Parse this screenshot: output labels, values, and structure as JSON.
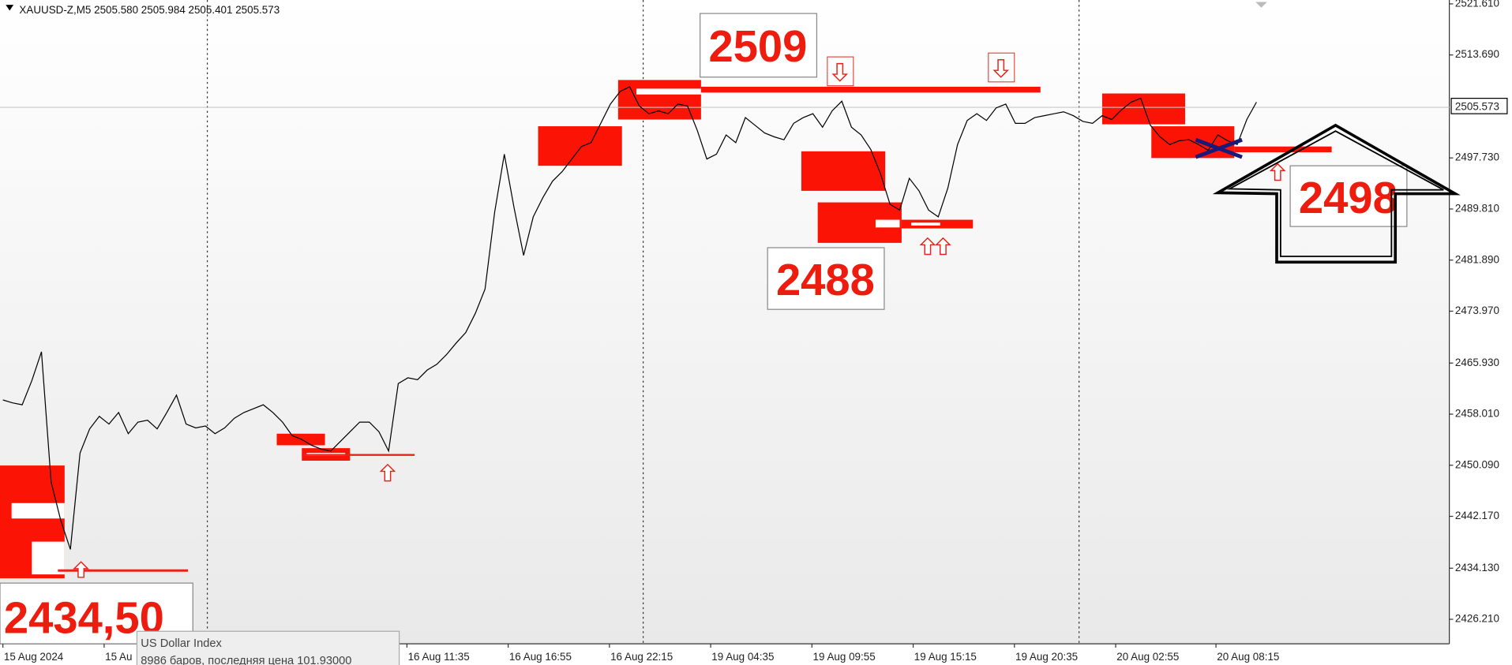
{
  "chart_data": {
    "type": "line",
    "title": "XAUUSD-Z,M5  2505.580 2505.984 2505.401 2505.573",
    "color": "#000000",
    "values": [
      2460.21,
      2459.76,
      2459.46,
      2463.19,
      2467.68,
      2447.51,
      2441.53,
      2437.05,
      2451.99,
      2455.72,
      2457.67,
      2456.47,
      2458.26,
      2454.98,
      2456.77,
      2457.07,
      2455.72,
      2458.26,
      2460.95,
      2456.47,
      2455.87,
      2456.17,
      2454.98,
      2455.87,
      2457.37,
      2458.26,
      2458.86,
      2459.46,
      2458.26,
      2456.77,
      2454.68,
      2454.08,
      2453.18,
      2452.59,
      2452.29,
      2453.78,
      2455.28,
      2456.77,
      2456.77,
      2455.28,
      2452.29,
      2462.75,
      2463.64,
      2463.34,
      2464.84,
      2465.73,
      2467.23,
      2469.02,
      2470.66,
      2473.65,
      2477.39,
      2489.34,
      2498.3,
      2490.09,
      2482.62,
      2488.59,
      2491.58,
      2494.12,
      2495.61,
      2497.56,
      2499.5,
      2500.1,
      2503.08,
      2506.07,
      2508.01,
      2508.76,
      2505.77,
      2504.58,
      2505.03,
      2504.58,
      2506.07,
      2505.77,
      2502.04,
      2497.56,
      2498.3,
      2501.29,
      2500.1,
      2503.98,
      2502.79,
      2501.59,
      2500.99,
      2500.54,
      2503.08,
      2503.98,
      2504.58,
      2502.49,
      2505.03,
      2506.52,
      2502.49,
      2501.29,
      2499.05,
      2495.32,
      2490.53,
      2489.64,
      2494.57,
      2492.63,
      2489.64,
      2488.59,
      2493.07,
      2499.8,
      2503.53,
      2504.58,
      2503.53,
      2505.47,
      2506.07,
      2503.08,
      2503.08,
      2503.98,
      2504.28,
      2504.58,
      2504.88,
      2504.28,
      2503.38,
      2503.08,
      2504.28,
      2503.68,
      2505.18,
      2506.37,
      2506.97,
      2502.79,
      2500.99,
      2499.8,
      2500.4,
      2500.54,
      2499.8,
      2498.9,
      2501.29,
      2500.4,
      2499.8,
      2503.68,
      2506.37
    ],
    "xlim": [
      0,
      150
    ],
    "xticks": [
      {
        "value": 0,
        "label": "15 Aug 2024"
      },
      {
        "value": 10.5,
        "label": "15 Au"
      },
      {
        "value": 41.9,
        "label": "16 Aug 11:35"
      },
      {
        "value": 52.4,
        "label": "16 Aug 16:55"
      },
      {
        "value": 62.9,
        "label": "16 Aug 22:15"
      },
      {
        "value": 73.4,
        "label": "19 Aug 04:35"
      },
      {
        "value": 83.9,
        "label": "19 Aug 09:55"
      },
      {
        "value": 94.4,
        "label": "19 Aug 15:15"
      },
      {
        "value": 104.9,
        "label": "19 Aug 20:35"
      },
      {
        "value": 115.4,
        "label": "20 Aug 02:55"
      },
      {
        "value": 125.8,
        "label": "20 Aug 08:15"
      }
    ],
    "ylim": [
      2422.41,
      2522.21
    ],
    "yticks": [
      {
        "value": 2521.61,
        "label": "2521.610"
      },
      {
        "value": 2513.69,
        "label": "2513.690"
      },
      {
        "value": 2497.73,
        "label": "2497.730"
      },
      {
        "value": 2489.81,
        "label": "2489.810"
      },
      {
        "value": 2481.89,
        "label": "2481.890"
      },
      {
        "value": 2473.97,
        "label": "2473.970"
      },
      {
        "value": 2465.93,
        "label": "2465.930"
      },
      {
        "value": 2458.01,
        "label": "2458.010"
      },
      {
        "value": 2450.09,
        "label": "2450.090"
      },
      {
        "value": 2442.17,
        "label": "2442.170"
      },
      {
        "value": 2434.13,
        "label": "2434.130"
      },
      {
        "value": 2426.21,
        "label": "2426.210"
      }
    ],
    "current_price": 2505.573,
    "annotations": [
      "2509",
      "2488",
      "2498",
      "2434,50"
    ],
    "tooltip": {
      "title": "US Dollar Index",
      "text": "8986 баров, последняя цена 101.93000"
    }
  }
}
